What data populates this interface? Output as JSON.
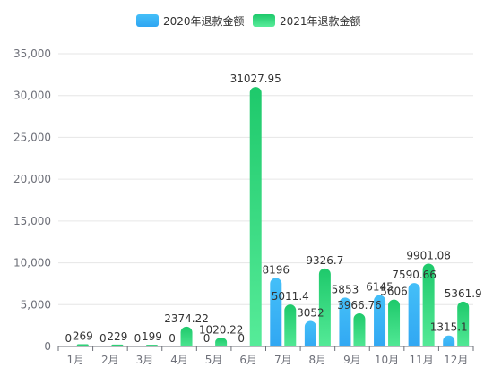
{
  "chart_data": {
    "type": "bar",
    "categories": [
      "1月",
      "2月",
      "3月",
      "4月",
      "5月",
      "6月",
      "7月",
      "8月",
      "9月",
      "10月",
      "11月",
      "12月"
    ],
    "series": [
      {
        "name": "2020年退款金额",
        "values": [
          0,
          0,
          0,
          0,
          0,
          0,
          8196,
          3052,
          5853,
          6145,
          7590.66,
          1315.1
        ],
        "labels": [
          "0",
          "0",
          "0",
          "0",
          "0",
          "0",
          "8196",
          "3052",
          "5853",
          "6145",
          "7590.66",
          "1315.1"
        ],
        "color_top": "#44bff8",
        "color_bottom": "#2fa5f2"
      },
      {
        "name": "2021年退款金额",
        "values": [
          269,
          229,
          199,
          2374.22,
          1020.22,
          31027.95,
          5011.4,
          9326.7,
          3966.76,
          5606,
          9901.08,
          5361.9
        ],
        "labels": [
          "269",
          "229",
          "199",
          "2374.22",
          "1020.22",
          "31027.95",
          "5011.4",
          "9326.7",
          "3966.76",
          "5606",
          "9901.08",
          "5361.9"
        ],
        "color_top": "#1ec96b",
        "color_bottom": "#58ec9a"
      }
    ],
    "yticks": [
      "0",
      "5,000",
      "10,000",
      "15,000",
      "20,000",
      "25,000",
      "30,000",
      "35,000"
    ],
    "ylim": [
      0,
      35000
    ],
    "grid": true,
    "legend_position": "top-center"
  }
}
